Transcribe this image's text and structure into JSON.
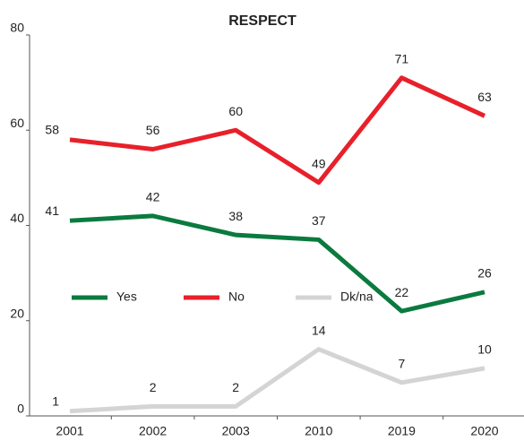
{
  "chart_data": {
    "type": "line",
    "title": "RESPECT",
    "categories": [
      "2001",
      "2002",
      "2003",
      "2010",
      "2019",
      "2020"
    ],
    "series": [
      {
        "name": "Yes",
        "color": "#0b7a3f",
        "values": [
          41,
          42,
          38,
          37,
          22,
          26
        ]
      },
      {
        "name": "No",
        "color": "#e8202a",
        "values": [
          58,
          56,
          60,
          49,
          71,
          63
        ]
      },
      {
        "name": "Dk/na",
        "color": "#d4d4d4",
        "values": [
          1,
          2,
          2,
          14,
          7,
          10
        ]
      }
    ],
    "ylim": [
      0,
      80
    ],
    "yticks": [
      0,
      20,
      40,
      60,
      80
    ],
    "grid": false,
    "legend": "inside"
  }
}
